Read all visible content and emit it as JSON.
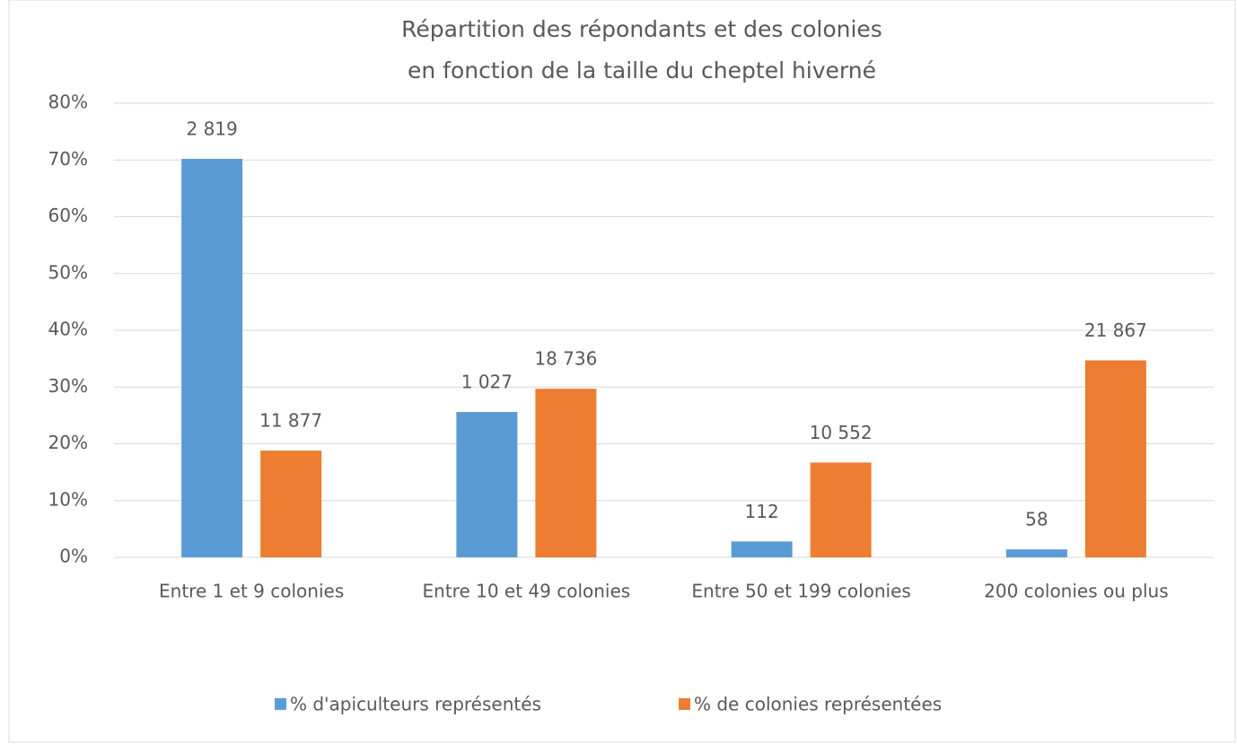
{
  "chart_data": {
    "type": "bar",
    "title": [
      "Répartition des répondants et des colonies",
      "en fonction de la taille du cheptel hiverné"
    ],
    "categories": [
      "Entre 1 et 9 colonies",
      "Entre 10 et 49 colonies",
      "Entre 50 et 199 colonies",
      "200 colonies ou plus"
    ],
    "series": [
      {
        "name": "% d'apiculteurs représentés",
        "color": "#5b9bd5",
        "values": [
          70.2,
          25.6,
          2.8,
          1.4
        ],
        "data_labels": [
          "2 819",
          "1 027",
          "112",
          "58"
        ]
      },
      {
        "name": "% de colonies représentées",
        "color": "#ed7d31",
        "values": [
          18.8,
          29.7,
          16.7,
          34.7
        ],
        "data_labels": [
          "11 877",
          "18 736",
          "10 552",
          "21 867"
        ]
      }
    ],
    "ylim": [
      0,
      80
    ],
    "yticks": [
      {
        "value": 0,
        "label": "0%"
      },
      {
        "value": 10,
        "label": "10%"
      },
      {
        "value": 20,
        "label": "20%"
      },
      {
        "value": 30,
        "label": "30%"
      },
      {
        "value": 40,
        "label": "40%"
      },
      {
        "value": 50,
        "label": "50%"
      },
      {
        "value": 60,
        "label": "60%"
      },
      {
        "value": 70,
        "label": "70%"
      },
      {
        "value": 80,
        "label": "80%"
      }
    ],
    "grid": true,
    "legend": "bottom"
  }
}
